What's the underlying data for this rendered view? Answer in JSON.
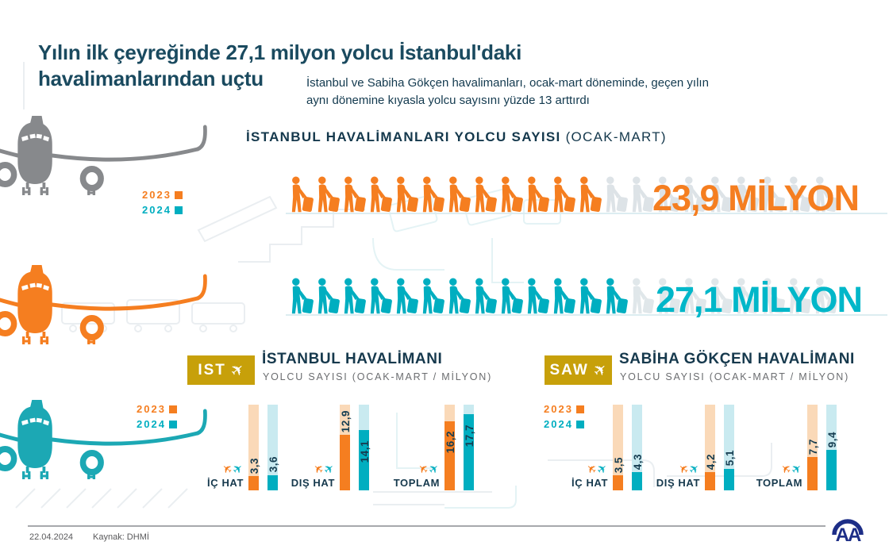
{
  "header": {
    "title_line1": "Yılın ilk çeyreğinde 27,1 milyon yolcu İstanbul'daki",
    "title_line2": "havalimanlarından uçtu",
    "subtitle_line1": "İstanbul ve Sabiha Gökçen havalimanları, ocak-mart döneminde, geçen yılın",
    "subtitle_line2": "aynı dönemine kıyasla yolcu sayısını yüzde 13 arttırdı"
  },
  "colors": {
    "orange": "#F57E20",
    "orange_pale": "#FAD9B8",
    "teal": "#00AEC0",
    "teal_bright": "#00B7C9",
    "teal_pale": "#C9EAF0",
    "navy": "#16394D",
    "gold": "#C7A00A",
    "plane_gray": "#87898C",
    "plane_teal": "#1CA8B4",
    "faint_icon_1": "#DDE3E7",
    "faint_icon_2": "#E0E7EA",
    "logo_navy": "#1D2E87"
  },
  "chart_data": [
    {
      "type": "pictogram",
      "title": "İSTANBUL HAVALİMANLARI YOLCU SAYISI",
      "title_suffix": "(OCAK-MART)",
      "unit": "milyon yolcu",
      "series": [
        {
          "name": "2023",
          "value": 23.9,
          "label": "23,9 MİLYON",
          "icons": 12,
          "icons_faint": 9
        },
        {
          "name": "2024",
          "value": 27.1,
          "label": "27,1 MİLYON",
          "icons": 13,
          "icons_faint": 8
        }
      ]
    },
    {
      "type": "bar",
      "code": "IST",
      "title": "İSTANBUL HAVALİMANI",
      "subtitle": "YOLCU SAYISI (OCAK-MART / MİLYON)",
      "categories": [
        "İÇ HAT",
        "DIŞ HAT",
        "TOPLAM"
      ],
      "series": [
        {
          "name": "2023",
          "values": [
            3.3,
            12.9,
            16.2
          ],
          "labels": [
            "3,3",
            "12,9",
            "16,2"
          ]
        },
        {
          "name": "2024",
          "values": [
            3.6,
            14.1,
            17.7
          ],
          "labels": [
            "3,6",
            "14,1",
            "17,7"
          ]
        }
      ],
      "ylim": [
        0,
        20
      ],
      "legend_position": "top-left",
      "grid": false
    },
    {
      "type": "bar",
      "code": "SAW",
      "title": "SABİHA GÖKÇEN HAVALİMANI",
      "subtitle": "YOLCU SAYISI (OCAK-MART / MİLYON)",
      "categories": [
        "İÇ HAT",
        "DIŞ HAT",
        "TOPLAM"
      ],
      "series": [
        {
          "name": "2023",
          "values": [
            3.5,
            4.2,
            7.7
          ],
          "labels": [
            "3,5",
            "4,2",
            "7,7"
          ]
        },
        {
          "name": "2024",
          "values": [
            4.3,
            5.1,
            9.4
          ],
          "labels": [
            "4,3",
            "5,1",
            "9,4"
          ]
        }
      ],
      "ylim": [
        0,
        20
      ],
      "legend_position": "top-left",
      "grid": false
    }
  ],
  "footer": {
    "date": "22.04.2024",
    "source": "Kaynak: DHMİ",
    "logo": "AA"
  }
}
